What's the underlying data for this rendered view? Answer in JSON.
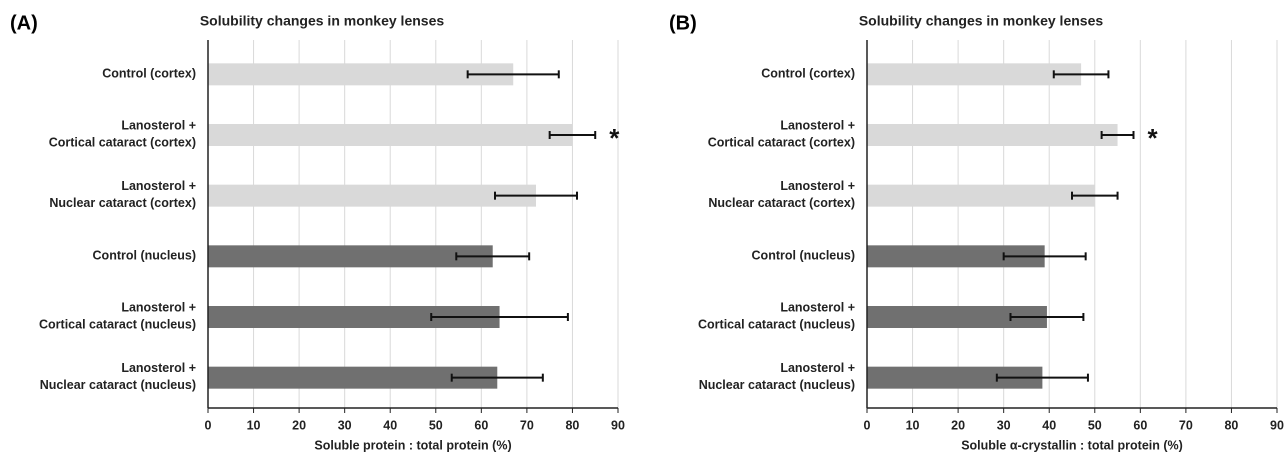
{
  "chart_data": [
    {
      "type": "bar",
      "orientation": "horizontal",
      "panel": "(A)",
      "title": "Solubility changes in monkey lenses",
      "xlabel": "Soluble protein : total protein (%)",
      "categories": [
        [
          "Control (cortex)"
        ],
        [
          "Lanosterol +",
          "Cortical cataract  (cortex)"
        ],
        [
          "Lanosterol +",
          "Nuclear cataract  (cortex)"
        ],
        [
          "Control (nucleus)"
        ],
        [
          "Lanosterol +",
          "Cortical cataract  (nucleus)"
        ],
        [
          "Lanosterol +",
          "Nuclear cataract (nucleus)"
        ]
      ],
      "values": [
        67,
        80,
        72,
        62.5,
        64,
        63.5
      ],
      "errors": [
        10,
        5,
        9,
        8,
        15,
        10
      ],
      "colors": [
        "#d9d9d9",
        "#d9d9d9",
        "#d9d9d9",
        "#707070",
        "#707070",
        "#707070"
      ],
      "value_annotations": [
        null,
        "*",
        null,
        null,
        null,
        null
      ],
      "xlim": [
        0,
        90
      ],
      "xticks": [
        0,
        10,
        20,
        30,
        40,
        50,
        60,
        70,
        80,
        90
      ],
      "grid": true
    },
    {
      "type": "bar",
      "orientation": "horizontal",
      "panel": "(B)",
      "title": "Solubility changes in monkey lenses",
      "xlabel": "Soluble α-crystallin : total protein (%)",
      "categories": [
        [
          "Control (cortex)"
        ],
        [
          "Lanosterol +",
          "Cortical cataract (cortex)"
        ],
        [
          "Lanosterol +",
          "Nuclear cataract (cortex)"
        ],
        [
          "Control (nucleus)"
        ],
        [
          "Lanosterol +",
          "Cortical cataract (nucleus)"
        ],
        [
          "Lanosterol +",
          "Nuclear cataract (nucleus)"
        ]
      ],
      "values": [
        47,
        55,
        50,
        39,
        39.5,
        38.5
      ],
      "errors": [
        6,
        3.5,
        5,
        9,
        8,
        10
      ],
      "colors": [
        "#d9d9d9",
        "#d9d9d9",
        "#d9d9d9",
        "#707070",
        "#707070",
        "#707070"
      ],
      "value_annotations": [
        null,
        "*",
        null,
        null,
        null,
        null
      ],
      "xlim": [
        0,
        90
      ],
      "xticks": [
        0,
        10,
        20,
        30,
        40,
        50,
        60,
        70,
        80,
        90
      ],
      "grid": true
    }
  ]
}
